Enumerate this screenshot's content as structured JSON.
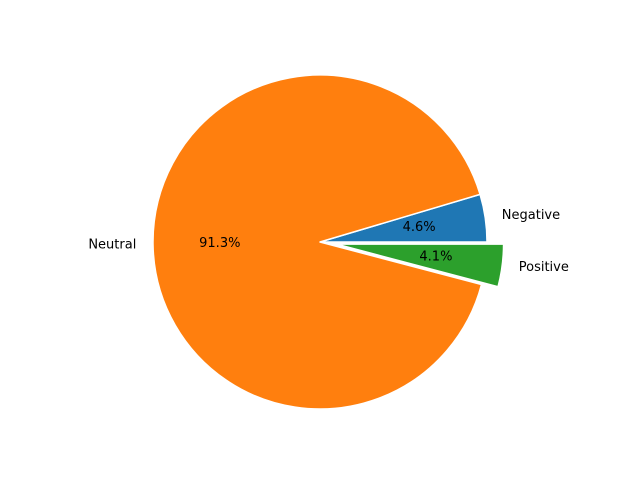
{
  "chart_data": {
    "type": "pie",
    "title": "",
    "labels": [
      "Negative",
      "Neutral",
      "Positive"
    ],
    "values": [
      4.6,
      91.3,
      4.1
    ],
    "value_labels": [
      "4.6%",
      "91.3%",
      "4.1%"
    ],
    "colors": [
      "#1f77b4",
      "#ff7f0e",
      "#2ca02c"
    ],
    "explode": [
      0,
      0,
      0.1
    ],
    "start_angle_deg": 0,
    "direction": "counterclockwise"
  }
}
